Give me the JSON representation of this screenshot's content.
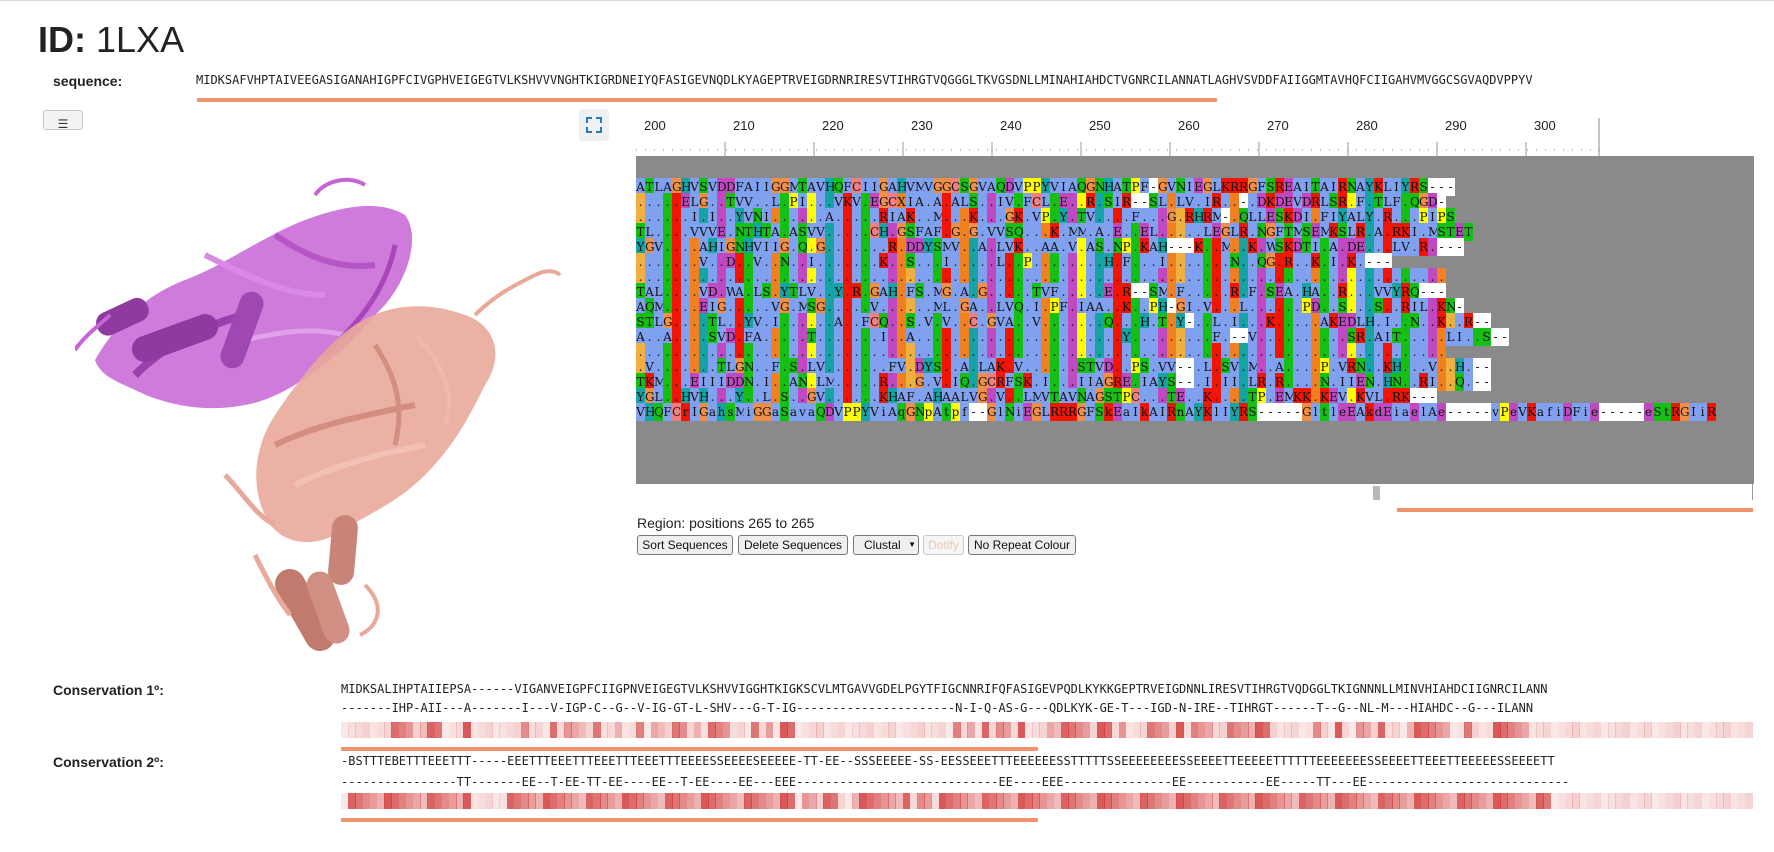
{
  "header": {
    "id_label": "ID:",
    "id_value": "1LXA"
  },
  "sequence": {
    "label": "sequence:",
    "value": "MIDKSAFVHPTAIVEEGASIGANAHIGPFCIVGPHVEIGEGTVLKSHVVVNGHTKIGRDNEIYQFASIGEVNQDLKYAGEPTRVEIGDRNRIRESVTIHRGTVQGGGLTKVGSDNLLMINAHIAHDCTVGNRCILANNATLAGHVSVDDFAIIGGMTAVHQFCIIGAHVMVGGCSGVAQDVPPYV"
  },
  "toolbar": {
    "menu_icon": "menu-icon",
    "expand_icon": "expand-icon"
  },
  "msa": {
    "ruler_ticks": [
      "200",
      "210",
      "220",
      "230",
      "240",
      "250",
      "260",
      "270",
      "280",
      "290",
      "300"
    ],
    "rows": [
      "ATLAGHVSVDDFAIIGGMTAVHQFCIIGAHVMVGGCSGVAQDVPPYVIAQGNHATPF-GVNIEGLKRRGFSREAITAIRNAYKLIYRS---",
      ".....ELG..TVV..L.PI...VKV.EGCXIA.A.ALS..IV.FCL.E..R.SIR--SL.LV.IR..-.DKDEVDRLSR.F.TLF.QGD-",
      "......I.I..YVNI......A.....RIAK..M...K...GK.VP.Y.TV....F...G.RHRM-.QLLESKDI.FIYALY.R...PIPS",
      "TL....VVVE.NTHTA.ASVV.....CH.GSFAF.G.G.VVSQ...K.MM.A.E..EL.....LEGLR.NGFTMSEMKSLR.A.RKI.MSTET",
      "YGV....AHIGNHVIIG.Q.G.......R.DDYSMV..A.LVK..AA.V.AS.NP.KAH---K..M..K.WSKDTI.A.DE...LV.R.---",
      ".......V..D..V..N..I.......K..S...I.....L..P........H.F...I.......N..QG.R..K.I.K.---",
      "..........................................................................................",
      "TAL....VD.WA.LS.YTLV..Y.R.GAH.FS.MG.A.G.....TVF.....E.R--SM.F.....R.F.SEA.HA..R...VVYRQ---",
      "AQM....EIG.....VG.MSG.....V......ML.GA..LVQ.I.PF.IAA..K..PH-GI.V...L......PD..S...S..RIL.KN-",
      "STLG....TL..YV.I......A..FCQ..S.V.V..C.GVA..V.......Q...H.T.Y-..L.I...K.....AKEDLH.I..N..K..R--",
      "A..A....SVD.FA.....T.......I..A.......................Y.........F.--V..........SR.AIT.....LI..S--",
      "..........................................................................................",
      ".V.......TLGN..F.S.LV.......FV.DYS..A.LAK.V......STVD..PS.VV--.L.SV.M..A....P.VRN..KH...V..H.--",
      "TKM...EIIIDDN.I..AN.LM.....R...G.V.IQ.GCRFSK.I...IIAGRE.IAYS--.I.II.LR.R....N.IIEN.HN..RI..Q.--",
      "YGL..HVH...Y..L.S..GV......KHAF.AHAALVG.V..LMVTAVNAGSTPC...TE..K....TP.EMKK.KEV.KVL.RK---",
      "VHQFCrIGahsMiGGaSavaQDVPPYViAqGNpAtpf--GlNiEGLRRRGFSkEaIkAIRnAYKlIYRS-----GltleEAkdEiaelAe-----vPeVKafiDFie-----eStRGIiR"
    ],
    "region_text": "Region: positions 265 to 265",
    "buttons": {
      "sort": "Sort Sequences",
      "delete": "Delete Sequences",
      "color_scheme": "Clustal",
      "dotify": "Dotify",
      "no_repeat": "No Repeat Colour"
    }
  },
  "conservation1": {
    "label": "Conservation 1º:",
    "line1": "MIDKSALIHPTAIIEPSA------VIGANVEIGPFCIIGPNVEIGEGTVLKSHVVIGGHTKIGKSCVLMTGAVVGDELPGYTFIGCNNRIFQFASIGEVPQDLKYKKGEPTRVEIGDNNLIRESVTIHRGTVQDGGLTKIGNNNLLMINVHIAHDCIIGNRCILANN",
    "line2": "-------IHP-AII---A-------I---V-IGP-C--G--V-IG-GT-L-SHV---G-T-IG----------------------N-I-Q-AS-G---QDLKYK-GE-T---IGD-N-IRE--TIHRGT------T--G--NL-M---HIAHDC--G---ILANN"
  },
  "conservation2": {
    "label": "Conservation 2º:",
    "line1": "-BSTTTEBETTTEEETTT-----EEETTTEEETTTEEETTTEEETTTEEEESSEEEESEEEEE-TT-EE--SSSEEEEE-SS-EESSEEETTTEEEEEESSTTTTTSSEEEEEEEESSEEEETTEEEEETTTTTTEEEEEEESSEEEETTEEETTEEEEESSEEEETT",
    "line2": "----------------TT-------EE--T-EE-TT-EE----EE--T-EE----EE---EEE----------------------------EE----EEE---------------EE-----------EE-----TT---EE----------------------------"
  },
  "colors": {
    "accent_bar": "#f0926e",
    "chain_a": "#c564d6",
    "chain_b": "#e8a89a"
  }
}
